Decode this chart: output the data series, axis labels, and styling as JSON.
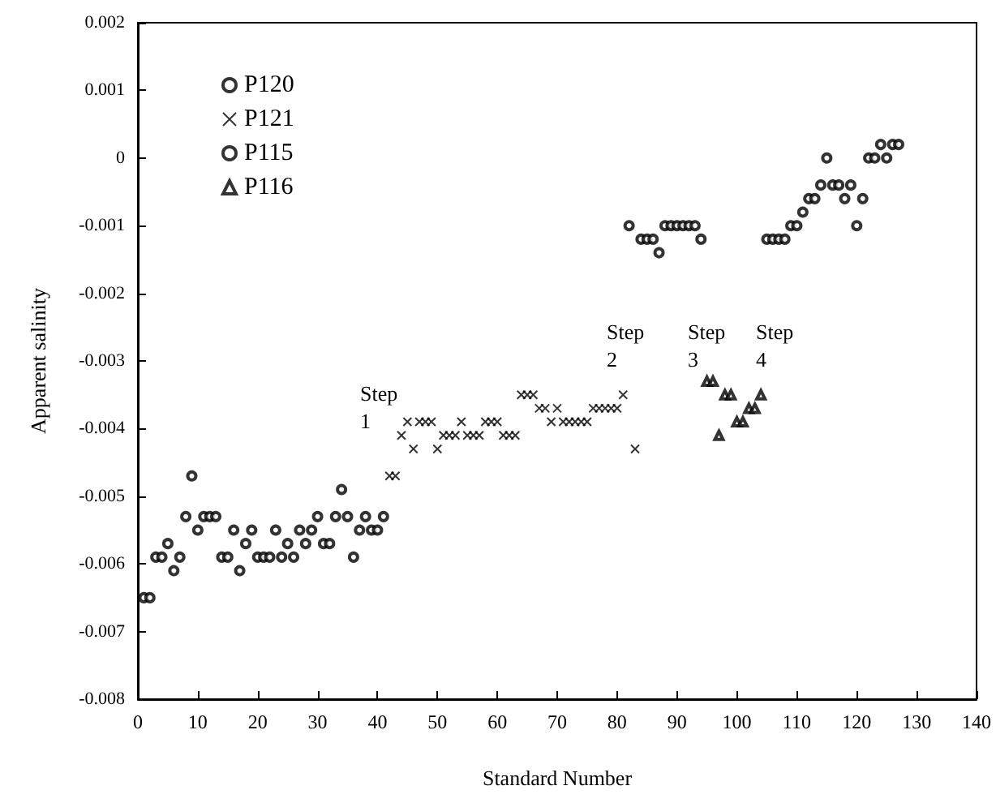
{
  "chart_data": {
    "type": "scatter",
    "xlabel": "Standard Number",
    "ylabel": "Apparent salinity",
    "xlim": [
      0,
      140
    ],
    "xticks": [
      0,
      10,
      20,
      30,
      40,
      50,
      60,
      70,
      80,
      90,
      100,
      110,
      120,
      130,
      140
    ],
    "ylim": [
      -0.008,
      0.002
    ],
    "yticks": [
      -0.008,
      -0.007,
      -0.006,
      -0.005,
      -0.004,
      -0.003,
      -0.002,
      -0.001,
      0,
      0.001,
      0.002
    ],
    "grid": false,
    "legend": "top left",
    "annotations": [
      "Step\n1",
      "Step\n2",
      "Step\n3",
      "Step\n4"
    ],
    "series": [
      {
        "name": "P120",
        "color": "#000000",
        "marker": "circle",
        "x": [
          1,
          2,
          3,
          4,
          5,
          6,
          7,
          8,
          9,
          10,
          11,
          12,
          13,
          14,
          15,
          16,
          17,
          18,
          19,
          20,
          21,
          22,
          23,
          24,
          25,
          26,
          27,
          28,
          29,
          30,
          31,
          32,
          33,
          34,
          35,
          36,
          37,
          38,
          39,
          40,
          41
        ],
        "values": [
          -0.0065,
          -0.0065,
          -0.0059,
          -0.0059,
          -0.0057,
          -0.0061,
          -0.0059,
          -0.0053,
          -0.0047,
          -0.0055,
          -0.0053,
          -0.0053,
          -0.0053,
          -0.0059,
          -0.0059,
          -0.0055,
          -0.0061,
          -0.0057,
          -0.0055,
          -0.0059,
          -0.0059,
          -0.0059,
          -0.0055,
          -0.0059,
          -0.0057,
          -0.0059,
          -0.0055,
          -0.0057,
          -0.0055,
          -0.0053,
          -0.0057,
          -0.0057,
          -0.0053,
          -0.0049,
          -0.0053,
          -0.0059,
          -0.0055,
          -0.0053,
          -0.0055,
          -0.0055,
          -0.0053
        ]
      },
      {
        "name": "P121",
        "color": "#000000",
        "marker": "cross",
        "x": [
          42,
          43,
          44,
          45,
          46,
          47,
          48,
          49,
          50,
          51,
          52,
          53,
          54,
          55,
          56,
          57,
          58,
          59,
          60,
          61,
          62,
          63,
          64,
          65,
          66,
          67,
          68,
          69,
          70,
          71,
          72,
          73,
          74,
          75,
          76,
          77,
          78,
          79,
          80,
          81,
          83
        ],
        "values": [
          -0.0047,
          -0.0047,
          -0.0041,
          -0.0039,
          -0.0043,
          -0.0039,
          -0.0039,
          -0.0039,
          -0.0043,
          -0.0041,
          -0.0041,
          -0.0041,
          -0.0039,
          -0.0041,
          -0.0041,
          -0.0041,
          -0.0039,
          -0.0039,
          -0.0039,
          -0.0041,
          -0.0041,
          -0.0041,
          -0.0035,
          -0.0035,
          -0.0035,
          -0.0037,
          -0.0037,
          -0.0039,
          -0.0037,
          -0.0039,
          -0.0039,
          -0.0039,
          -0.0039,
          -0.0039,
          -0.0037,
          -0.0037,
          -0.0037,
          -0.0037,
          -0.0037,
          -0.0035,
          -0.0043
        ]
      },
      {
        "name": "P115",
        "color": "#000000",
        "marker": "circle",
        "x": [
          82,
          84,
          85,
          86,
          87,
          88,
          89,
          90,
          91,
          92,
          93,
          94,
          105,
          106,
          107,
          108,
          109,
          110,
          111,
          112,
          113,
          114,
          115,
          116,
          117,
          118,
          119,
          120,
          121,
          122,
          123,
          124,
          125,
          126,
          127
        ],
        "values": [
          -0.001,
          -0.0012,
          -0.0012,
          -0.0012,
          -0.0014,
          -0.001,
          -0.001,
          -0.001,
          -0.001,
          -0.001,
          -0.001,
          -0.0012,
          -0.0012,
          -0.0012,
          -0.0012,
          -0.0012,
          -0.001,
          -0.001,
          -0.0008,
          -0.0006,
          -0.0006,
          -0.0004,
          0,
          -0.0004,
          -0.0004,
          -0.0006,
          -0.0004,
          -0.001,
          -0.0006,
          0,
          0,
          0.0002,
          0,
          0.0002,
          0.0002
        ]
      },
      {
        "name": "P116",
        "color": "#000000",
        "marker": "triangle",
        "x": [
          95,
          96,
          97,
          98,
          99,
          100,
          101,
          102,
          103,
          104
        ],
        "values": [
          -0.0033,
          -0.0033,
          -0.0041,
          -0.0035,
          -0.0035,
          -0.0039,
          -0.0039,
          -0.0037,
          -0.0037,
          -0.0035
        ]
      }
    ]
  }
}
